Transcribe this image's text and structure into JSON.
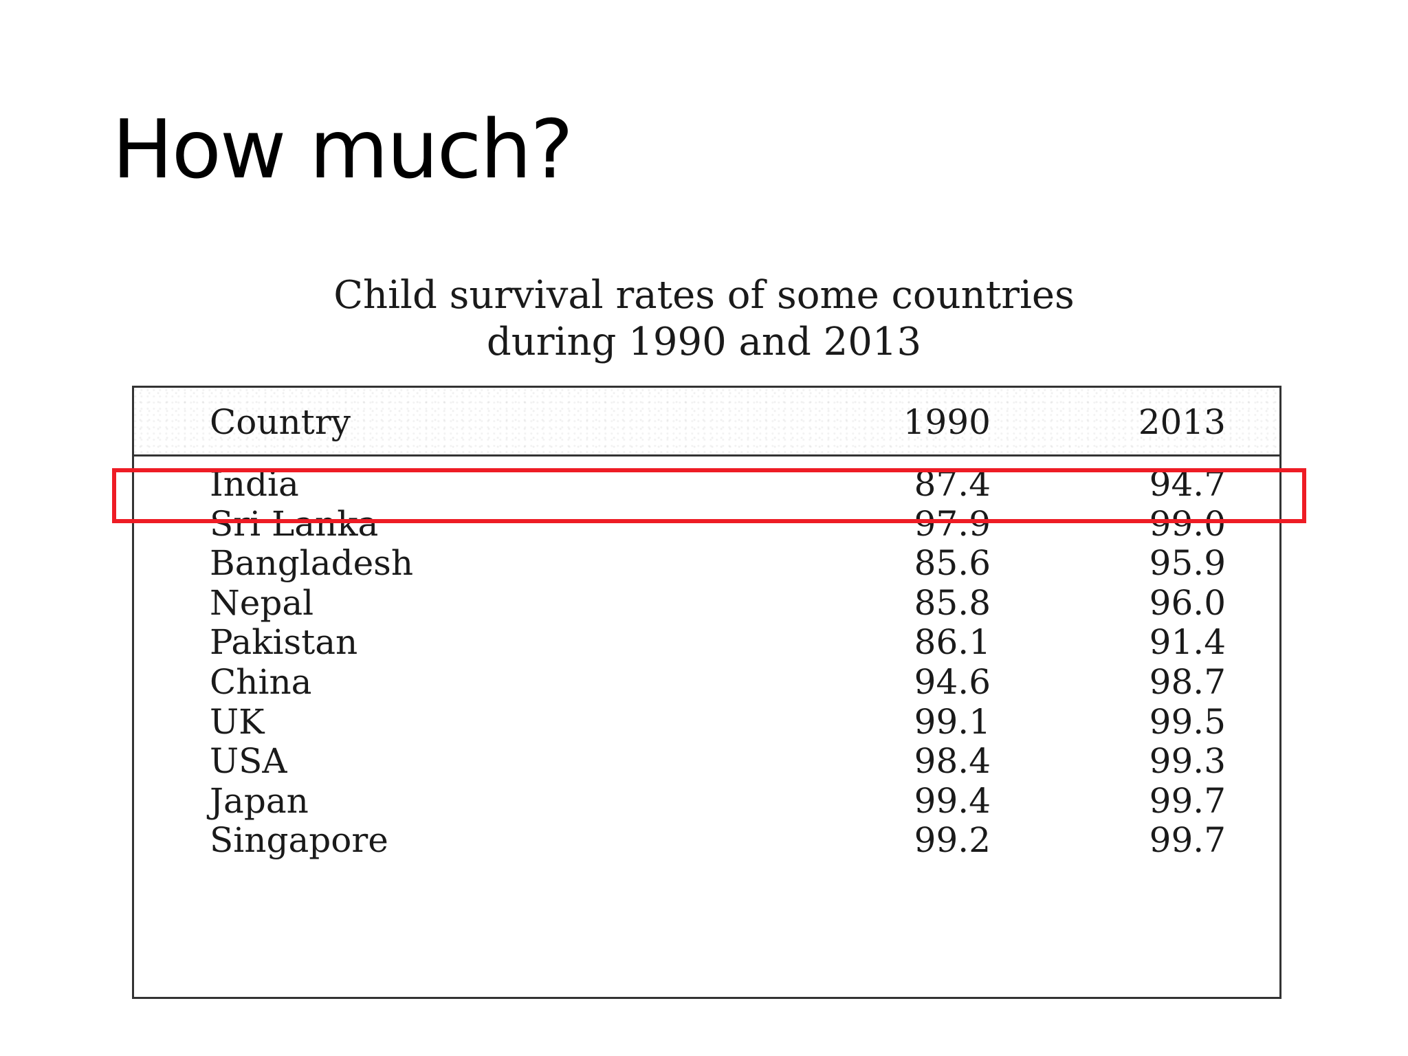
{
  "slide": {
    "title": "How much?"
  },
  "table": {
    "caption_line1": "Child survival rates of some countries",
    "caption_line2": "during 1990 and 2013",
    "headers": [
      "Country",
      "1990",
      "2013"
    ],
    "rows": [
      {
        "country": "India",
        "y1990": "87.4",
        "y2013": "94.7"
      },
      {
        "country": "Sri Lanka",
        "y1990": "97.9",
        "y2013": "99.0"
      },
      {
        "country": "Bangladesh",
        "y1990": "85.6",
        "y2013": "95.9"
      },
      {
        "country": "Nepal",
        "y1990": "85.8",
        "y2013": "96.0"
      },
      {
        "country": "Pakistan",
        "y1990": "86.1",
        "y2013": "91.4"
      },
      {
        "country": "China",
        "y1990": "94.6",
        "y2013": "98.7"
      },
      {
        "country": "UK",
        "y1990": "99.1",
        "y2013": "99.5"
      },
      {
        "country": "USA",
        "y1990": "98.4",
        "y2013": "99.3"
      },
      {
        "country": "Japan",
        "y1990": "99.4",
        "y2013": "99.7"
      },
      {
        "country": "Singapore",
        "y1990": "99.2",
        "y2013": "99.7"
      }
    ]
  },
  "highlight": {
    "row": "India",
    "color": "#ee1c25"
  },
  "chart_data": {
    "type": "table",
    "columns": [
      "Country",
      "1990",
      "2013"
    ],
    "rows": [
      [
        "India",
        87.4,
        94.7
      ],
      [
        "Sri Lanka",
        97.9,
        99.0
      ],
      [
        "Bangladesh",
        85.6,
        95.9
      ],
      [
        "Nepal",
        85.8,
        96.0
      ],
      [
        "Pakistan",
        86.1,
        91.4
      ],
      [
        "China",
        94.6,
        98.7
      ],
      [
        "UK",
        99.1,
        99.5
      ],
      [
        "USA",
        98.4,
        99.3
      ],
      [
        "Japan",
        99.4,
        99.7
      ],
      [
        "Singapore",
        99.2,
        99.7
      ]
    ]
  }
}
